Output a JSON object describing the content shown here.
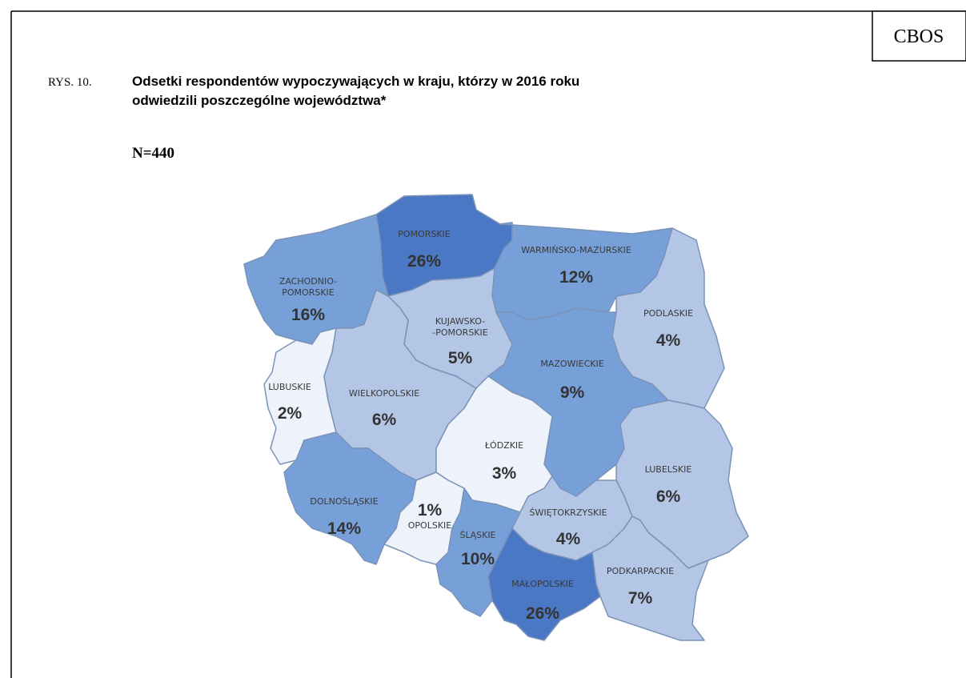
{
  "header": {
    "badge": "CBOS",
    "figure_number": "RYS. 10.",
    "title_lines": [
      "Odsetki respondentów wypoczywających w kraju, którzy w 2016 roku",
      "odwiedzili poszczególne województwa*"
    ],
    "sample": "N=440"
  },
  "regions": [
    {
      "name": [
        "POMORSKIE"
      ],
      "value": 26,
      "value_label": "26%"
    },
    {
      "name": [
        "ZACHODNIO-",
        "POMORSKIE"
      ],
      "value": 16,
      "value_label": "16%"
    },
    {
      "name": [
        "WARMIŃSKO-MAZURSKIE"
      ],
      "value": 12,
      "value_label": "12%"
    },
    {
      "name": [
        "PODLASKIE"
      ],
      "value": 4,
      "value_label": "4%"
    },
    {
      "name": [
        "KUJAWSKO-",
        "-POMORSKIE"
      ],
      "value": 5,
      "value_label": "5%"
    },
    {
      "name": [
        "MAZOWIECKIE"
      ],
      "value": 9,
      "value_label": "9%"
    },
    {
      "name": [
        "LUBUSKIE"
      ],
      "value": 2,
      "value_label": "2%"
    },
    {
      "name": [
        "WIELKOPOLSKIE"
      ],
      "value": 6,
      "value_label": "6%"
    },
    {
      "name": [
        "ŁÓDZKIE"
      ],
      "value": 3,
      "value_label": "3%"
    },
    {
      "name": [
        "LUBELSKIE"
      ],
      "value": 6,
      "value_label": "6%"
    },
    {
      "name": [
        "DOLNOŚLĄSKIE"
      ],
      "value": 14,
      "value_label": "14%"
    },
    {
      "name": [
        "OPOLSKIE"
      ],
      "value": 1,
      "value_label": "1%"
    },
    {
      "name": [
        "ŚLĄSKIE"
      ],
      "value": 10,
      "value_label": "10%"
    },
    {
      "name": [
        "ŚWIĘTOKRZYSKIE"
      ],
      "value": 4,
      "value_label": "4%"
    },
    {
      "name": [
        "MAŁOPOLSKIE"
      ],
      "value": 26,
      "value_label": "26%"
    },
    {
      "name": [
        "PODKARPACKIE"
      ],
      "value": 7,
      "value_label": "7%"
    }
  ]
}
